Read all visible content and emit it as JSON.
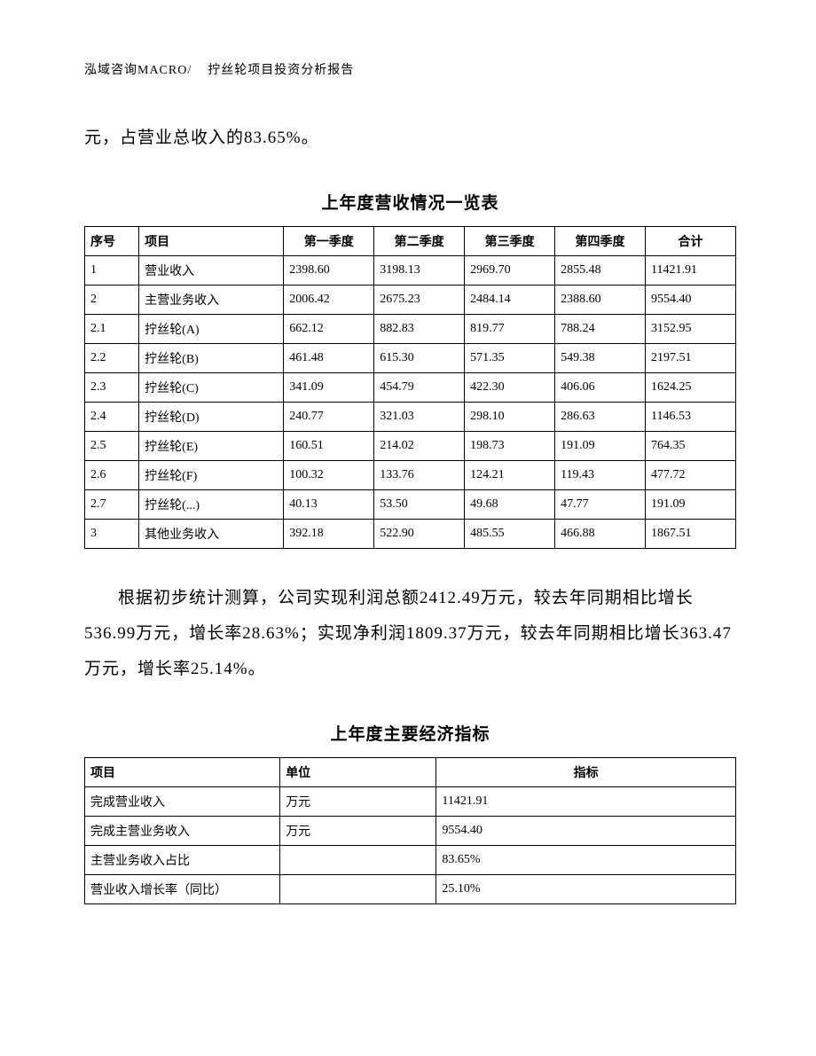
{
  "page": {
    "background_color": "#ffffff",
    "text_color": "#000000",
    "border_color": "#000000",
    "body_font_size_pt": 14,
    "table_font_size_pt": 10.5
  },
  "header": {
    "left": "泓域咨询MACRO/",
    "right": "拧丝轮项目投资分析报告"
  },
  "intro": "元，占营业总收入的83.65%。",
  "table1": {
    "type": "table",
    "title": "上年度营收情况一览表",
    "columns": [
      "序号",
      "项目",
      "第一季度",
      "第二季度",
      "第三季度",
      "第四季度",
      "合计"
    ],
    "rows": [
      [
        "1",
        "营业收入",
        "2398.60",
        "3198.13",
        "2969.70",
        "2855.48",
        "11421.91"
      ],
      [
        "2",
        "主营业务收入",
        "2006.42",
        "2675.23",
        "2484.14",
        "2388.60",
        "9554.40"
      ],
      [
        "2.1",
        "拧丝轮(A)",
        "662.12",
        "882.83",
        "819.77",
        "788.24",
        "3152.95"
      ],
      [
        "2.2",
        "拧丝轮(B)",
        "461.48",
        "615.30",
        "571.35",
        "549.38",
        "2197.51"
      ],
      [
        "2.3",
        "拧丝轮(C)",
        "341.09",
        "454.79",
        "422.30",
        "406.06",
        "1624.25"
      ],
      [
        "2.4",
        "拧丝轮(D)",
        "240.77",
        "321.03",
        "298.10",
        "286.63",
        "1146.53"
      ],
      [
        "2.5",
        "拧丝轮(E)",
        "160.51",
        "214.02",
        "198.73",
        "191.09",
        "764.35"
      ],
      [
        "2.6",
        "拧丝轮(F)",
        "100.32",
        "133.76",
        "124.21",
        "119.43",
        "477.72"
      ],
      [
        "2.7",
        "拧丝轮(...)",
        "40.13",
        "53.50",
        "49.68",
        "47.77",
        "191.09"
      ],
      [
        "3",
        "其他业务收入",
        "392.18",
        "522.90",
        "485.55",
        "466.88",
        "1867.51"
      ]
    ]
  },
  "body": "根据初步统计测算，公司实现利润总额2412.49万元，较去年同期相比增长536.99万元，增长率28.63%；实现净利润1809.37万元，较去年同期相比增长363.47万元，增长率25.14%。",
  "table2": {
    "type": "table",
    "title": "上年度主要经济指标",
    "columns": [
      "项目",
      "单位",
      "指标"
    ],
    "rows": [
      [
        "完成营业收入",
        "万元",
        "11421.91"
      ],
      [
        "完成主营业务收入",
        "万元",
        "9554.40"
      ],
      [
        "主营业务收入占比",
        "",
        "83.65%"
      ],
      [
        "营业收入增长率（同比）",
        "",
        "25.10%"
      ]
    ]
  }
}
